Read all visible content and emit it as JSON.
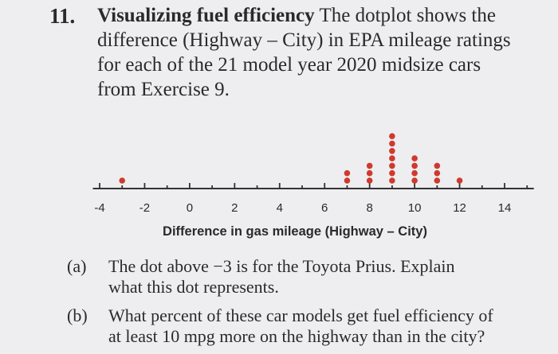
{
  "problem": {
    "number": "11.",
    "title": "Visualizing fuel efficiency",
    "lines": [
      " The dotplot shows the",
      "difference (Highway – City) in EPA mileage ratings",
      "for each of the 21 model year 2020 midsize cars",
      "from Exercise 9."
    ]
  },
  "chart_data": {
    "type": "dotplot",
    "xlabel": "Difference in gas mileage (Highway – City)",
    "xlim": [
      -4.3,
      15.3
    ],
    "ticks": [
      -4,
      -3,
      -2,
      -1,
      0,
      1,
      2,
      3,
      4,
      5,
      6,
      7,
      8,
      9,
      10,
      11,
      12,
      13,
      14,
      15
    ],
    "tick_labels": [
      "-4",
      "-2",
      "0",
      "2",
      "4",
      "6",
      "8",
      "10",
      "12",
      "14"
    ],
    "dot_color": "#d0392d",
    "points": [
      {
        "x": -3,
        "count": 1
      },
      {
        "x": 7,
        "count": 2
      },
      {
        "x": 8,
        "count": 3
      },
      {
        "x": 9,
        "count": 7
      },
      {
        "x": 10,
        "count": 4
      },
      {
        "x": 11,
        "count": 3
      },
      {
        "x": 12,
        "count": 1
      }
    ]
  },
  "questions": [
    {
      "label": "(a)",
      "lines": [
        "The dot above −3 is for the Toyota Prius. Explain",
        "what this dot represents."
      ]
    },
    {
      "label": "(b)",
      "lines": [
        "What percent of these car models get fuel efficiency of",
        "at least 10 mpg more on the highway than in the city?"
      ]
    }
  ]
}
